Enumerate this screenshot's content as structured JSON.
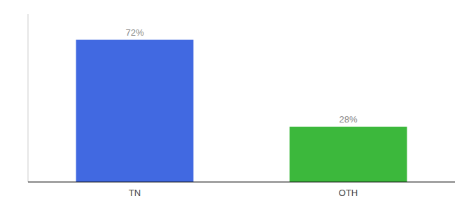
{
  "chart_data": {
    "type": "bar",
    "categories": [
      "TN",
      "OTH"
    ],
    "values": [
      72,
      28
    ],
    "value_labels": [
      "72%",
      "28%"
    ],
    "colors": [
      "#4169E1",
      "#3CB83C"
    ],
    "ylim": [
      0,
      85
    ],
    "data_labels": true,
    "tick_labels": "x",
    "grid": false
  }
}
